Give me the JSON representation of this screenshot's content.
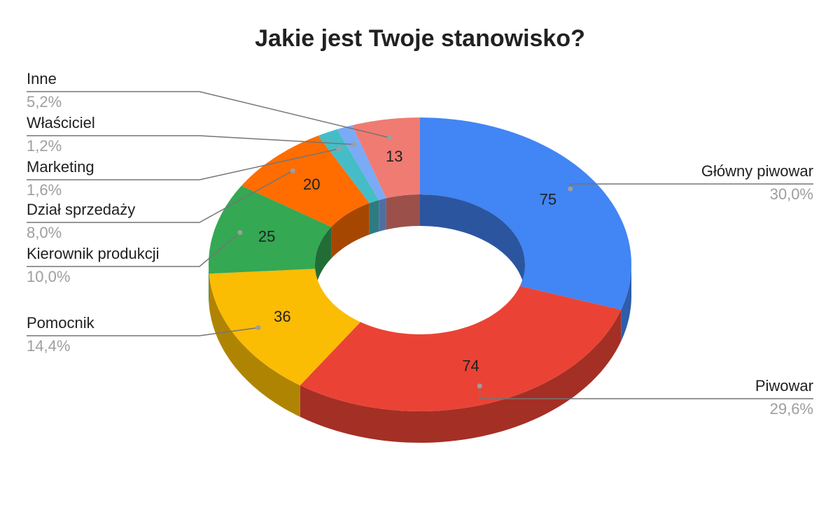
{
  "chart_data": {
    "type": "donut3d",
    "title": "Jakie jest Twoje stanowisko?",
    "categories": [
      "Główny piwowar",
      "Piwowar",
      "Pomocnik",
      "Kierownik produkcji",
      "Dział sprzedaży",
      "Marketing",
      "Właściciel",
      "Inne"
    ],
    "values": [
      75,
      74,
      36,
      25,
      20,
      4,
      3,
      13
    ],
    "value_labels": [
      "75",
      "74",
      "36",
      "25",
      "20",
      null,
      null,
      "13"
    ],
    "percent_labels": [
      "30,0%",
      "29,6%",
      "14,4%",
      "10,0%",
      "8,0%",
      "1,6%",
      "1,2%",
      "5,2%"
    ],
    "colors": [
      "#4285f4",
      "#ea4335",
      "#fbbc04",
      "#34a853",
      "#ff6d01",
      "#46bdc6",
      "#7baaf7",
      "#f07b72"
    ]
  }
}
